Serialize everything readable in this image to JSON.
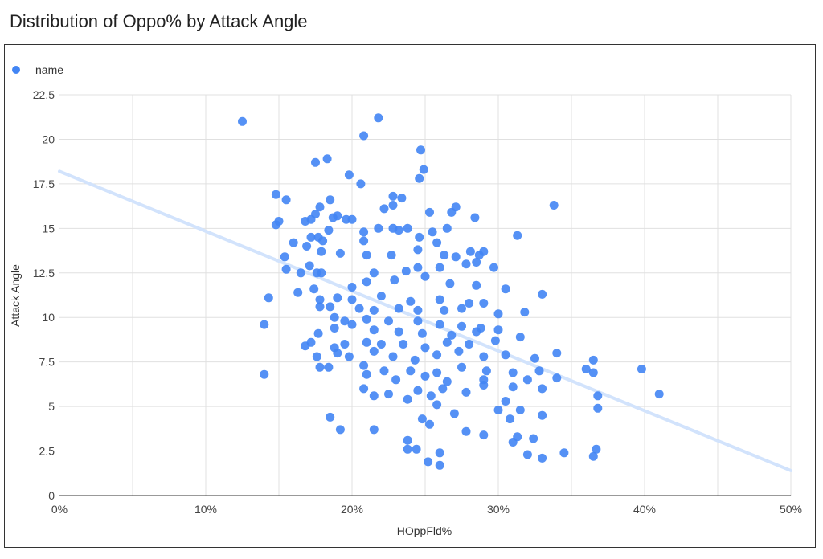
{
  "chart_title": "Distribution of Oppo% by Attack Angle",
  "colors": {
    "point": "#4285f4",
    "trend": "#d2e3fc",
    "grid": "#e0e0e0",
    "axis": "#333333"
  },
  "chart_data": {
    "type": "scatter",
    "title": "Distribution of Oppo% by Attack Angle",
    "xlabel": "HOppFld%",
    "ylabel": "Attack Angle",
    "xlim": [
      0,
      0.5
    ],
    "ylim": [
      0,
      22.5
    ],
    "x_ticks": [
      0,
      0.1,
      0.2,
      0.3,
      0.4,
      0.5
    ],
    "x_tick_labels": [
      "0%",
      "10%",
      "20%",
      "30%",
      "40%",
      "50%"
    ],
    "y_ticks": [
      0,
      2.5,
      5,
      7.5,
      10,
      12.5,
      15,
      17.5,
      20,
      22.5
    ],
    "y_tick_labels": [
      "0",
      "2.5",
      "5",
      "7.5",
      "10",
      "12.5",
      "15",
      "17.5",
      "20",
      "22.5"
    ],
    "grid": true,
    "legend_position": "top-left",
    "trendline": {
      "type": "linear",
      "from": [
        0,
        18.2
      ],
      "to": [
        0.5,
        1.4
      ]
    },
    "series": [
      {
        "name": "name",
        "points": [
          [
            0.125,
            21.0
          ],
          [
            0.218,
            21.2
          ],
          [
            0.208,
            20.2
          ],
          [
            0.247,
            19.4
          ],
          [
            0.183,
            18.9
          ],
          [
            0.175,
            18.7
          ],
          [
            0.198,
            18.0
          ],
          [
            0.249,
            18.3
          ],
          [
            0.246,
            17.8
          ],
          [
            0.206,
            17.5
          ],
          [
            0.148,
            16.9
          ],
          [
            0.155,
            16.6
          ],
          [
            0.185,
            16.6
          ],
          [
            0.228,
            16.8
          ],
          [
            0.234,
            16.7
          ],
          [
            0.338,
            16.3
          ],
          [
            0.271,
            16.2
          ],
          [
            0.228,
            16.3
          ],
          [
            0.222,
            16.1
          ],
          [
            0.178,
            16.2
          ],
          [
            0.168,
            15.4
          ],
          [
            0.175,
            15.8
          ],
          [
            0.19,
            15.7
          ],
          [
            0.196,
            15.5
          ],
          [
            0.2,
            15.5
          ],
          [
            0.187,
            15.6
          ],
          [
            0.172,
            15.5
          ],
          [
            0.15,
            15.4
          ],
          [
            0.148,
            15.2
          ],
          [
            0.253,
            15.9
          ],
          [
            0.268,
            15.9
          ],
          [
            0.284,
            15.6
          ],
          [
            0.265,
            15.0
          ],
          [
            0.255,
            14.8
          ],
          [
            0.238,
            15.0
          ],
          [
            0.228,
            15.0
          ],
          [
            0.218,
            15.0
          ],
          [
            0.232,
            14.9
          ],
          [
            0.208,
            14.8
          ],
          [
            0.184,
            14.9
          ],
          [
            0.172,
            14.5
          ],
          [
            0.177,
            14.5
          ],
          [
            0.18,
            14.3
          ],
          [
            0.16,
            14.2
          ],
          [
            0.169,
            14.0
          ],
          [
            0.208,
            14.3
          ],
          [
            0.246,
            14.5
          ],
          [
            0.258,
            14.2
          ],
          [
            0.313,
            14.6
          ],
          [
            0.245,
            13.8
          ],
          [
            0.192,
            13.6
          ],
          [
            0.179,
            13.7
          ],
          [
            0.154,
            13.4
          ],
          [
            0.21,
            13.5
          ],
          [
            0.227,
            13.5
          ],
          [
            0.263,
            13.5
          ],
          [
            0.271,
            13.4
          ],
          [
            0.287,
            13.5
          ],
          [
            0.281,
            13.7
          ],
          [
            0.29,
            13.7
          ],
          [
            0.171,
            12.9
          ],
          [
            0.176,
            12.5
          ],
          [
            0.165,
            12.5
          ],
          [
            0.155,
            12.7
          ],
          [
            0.179,
            12.5
          ],
          [
            0.215,
            12.5
          ],
          [
            0.237,
            12.6
          ],
          [
            0.245,
            12.8
          ],
          [
            0.26,
            12.8
          ],
          [
            0.278,
            13.0
          ],
          [
            0.285,
            13.1
          ],
          [
            0.297,
            12.8
          ],
          [
            0.163,
            11.4
          ],
          [
            0.174,
            11.6
          ],
          [
            0.2,
            11.7
          ],
          [
            0.21,
            12.0
          ],
          [
            0.229,
            12.1
          ],
          [
            0.25,
            12.3
          ],
          [
            0.267,
            11.9
          ],
          [
            0.285,
            11.8
          ],
          [
            0.305,
            11.6
          ],
          [
            0.33,
            11.3
          ],
          [
            0.178,
            11.0
          ],
          [
            0.19,
            11.1
          ],
          [
            0.2,
            11.0
          ],
          [
            0.22,
            11.2
          ],
          [
            0.24,
            10.9
          ],
          [
            0.26,
            11.0
          ],
          [
            0.28,
            10.8
          ],
          [
            0.29,
            10.8
          ],
          [
            0.143,
            11.1
          ],
          [
            0.178,
            10.6
          ],
          [
            0.185,
            10.6
          ],
          [
            0.205,
            10.5
          ],
          [
            0.215,
            10.4
          ],
          [
            0.232,
            10.5
          ],
          [
            0.245,
            10.4
          ],
          [
            0.263,
            10.4
          ],
          [
            0.275,
            10.5
          ],
          [
            0.3,
            10.2
          ],
          [
            0.318,
            10.3
          ],
          [
            0.14,
            9.6
          ],
          [
            0.188,
            10.0
          ],
          [
            0.195,
            9.8
          ],
          [
            0.21,
            9.9
          ],
          [
            0.225,
            9.8
          ],
          [
            0.245,
            9.8
          ],
          [
            0.26,
            9.6
          ],
          [
            0.275,
            9.5
          ],
          [
            0.288,
            9.4
          ],
          [
            0.177,
            9.1
          ],
          [
            0.188,
            9.4
          ],
          [
            0.2,
            9.6
          ],
          [
            0.215,
            9.3
          ],
          [
            0.232,
            9.2
          ],
          [
            0.248,
            9.1
          ],
          [
            0.268,
            9.0
          ],
          [
            0.285,
            9.2
          ],
          [
            0.3,
            9.3
          ],
          [
            0.315,
            8.9
          ],
          [
            0.172,
            8.6
          ],
          [
            0.168,
            8.4
          ],
          [
            0.188,
            8.3
          ],
          [
            0.195,
            8.5
          ],
          [
            0.21,
            8.6
          ],
          [
            0.22,
            8.5
          ],
          [
            0.235,
            8.5
          ],
          [
            0.25,
            8.3
          ],
          [
            0.265,
            8.6
          ],
          [
            0.28,
            8.5
          ],
          [
            0.298,
            8.7
          ],
          [
            0.34,
            8.0
          ],
          [
            0.176,
            7.8
          ],
          [
            0.19,
            8.0
          ],
          [
            0.198,
            7.8
          ],
          [
            0.215,
            8.1
          ],
          [
            0.228,
            7.8
          ],
          [
            0.243,
            7.6
          ],
          [
            0.258,
            7.9
          ],
          [
            0.273,
            8.1
          ],
          [
            0.29,
            7.8
          ],
          [
            0.305,
            7.9
          ],
          [
            0.325,
            7.7
          ],
          [
            0.178,
            7.2
          ],
          [
            0.184,
            7.2
          ],
          [
            0.208,
            7.3
          ],
          [
            0.222,
            7.0
          ],
          [
            0.24,
            7.0
          ],
          [
            0.258,
            6.9
          ],
          [
            0.275,
            7.2
          ],
          [
            0.292,
            7.0
          ],
          [
            0.31,
            6.9
          ],
          [
            0.328,
            7.0
          ],
          [
            0.36,
            7.1
          ],
          [
            0.365,
            7.6
          ],
          [
            0.398,
            7.1
          ],
          [
            0.14,
            6.8
          ],
          [
            0.21,
            6.8
          ],
          [
            0.23,
            6.5
          ],
          [
            0.25,
            6.7
          ],
          [
            0.265,
            6.4
          ],
          [
            0.29,
            6.5
          ],
          [
            0.32,
            6.5
          ],
          [
            0.34,
            6.6
          ],
          [
            0.365,
            6.9
          ],
          [
            0.208,
            6.0
          ],
          [
            0.225,
            5.7
          ],
          [
            0.245,
            5.9
          ],
          [
            0.262,
            6.0
          ],
          [
            0.278,
            5.8
          ],
          [
            0.29,
            6.2
          ],
          [
            0.31,
            6.1
          ],
          [
            0.33,
            6.0
          ],
          [
            0.368,
            5.6
          ],
          [
            0.41,
            5.7
          ],
          [
            0.215,
            5.6
          ],
          [
            0.238,
            5.4
          ],
          [
            0.254,
            5.6
          ],
          [
            0.258,
            5.1
          ],
          [
            0.27,
            4.6
          ],
          [
            0.3,
            4.8
          ],
          [
            0.305,
            5.3
          ],
          [
            0.315,
            4.8
          ],
          [
            0.368,
            4.9
          ],
          [
            0.185,
            4.4
          ],
          [
            0.248,
            4.3
          ],
          [
            0.253,
            4.0
          ],
          [
            0.308,
            4.3
          ],
          [
            0.33,
            4.5
          ],
          [
            0.192,
            3.7
          ],
          [
            0.215,
            3.7
          ],
          [
            0.278,
            3.6
          ],
          [
            0.29,
            3.4
          ],
          [
            0.31,
            3.0
          ],
          [
            0.313,
            3.3
          ],
          [
            0.324,
            3.2
          ],
          [
            0.238,
            3.1
          ],
          [
            0.238,
            2.6
          ],
          [
            0.244,
            2.6
          ],
          [
            0.26,
            2.4
          ],
          [
            0.32,
            2.3
          ],
          [
            0.33,
            2.1
          ],
          [
            0.345,
            2.4
          ],
          [
            0.365,
            2.2
          ],
          [
            0.367,
            2.6
          ],
          [
            0.252,
            1.9
          ],
          [
            0.26,
            1.7
          ]
        ]
      }
    ]
  }
}
